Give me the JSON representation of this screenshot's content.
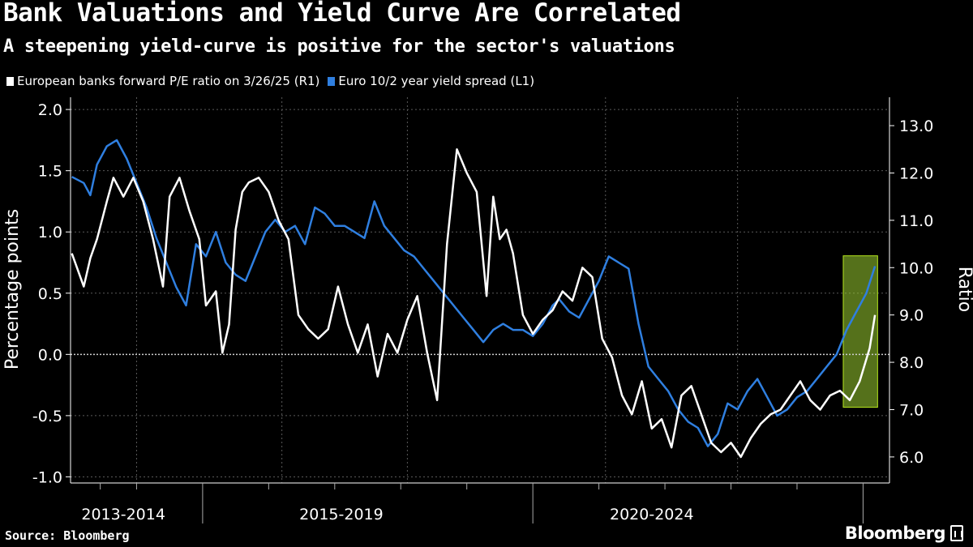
{
  "header": {
    "title": "Bank Valuations and Yield Curve Are Correlated",
    "subtitle": "A steepening yield-curve is positive for the sector's valuations"
  },
  "legend": {
    "items": [
      {
        "label": "European banks forward P/E ratio on 3/26/25 (R1)",
        "color": "#ffffff"
      },
      {
        "label": "Euro 10/2 year yield spread (L1)",
        "color": "#2f7fe0"
      }
    ]
  },
  "footer": {
    "source": "Source: Bloomberg",
    "brand": "Bloomberg"
  },
  "chart_data": {
    "type": "line",
    "title": "Bank Valuations and Yield Curve Are Correlated",
    "x_range": [
      2012.9,
      2025.3
    ],
    "x_period_labels": [
      {
        "label": "2013-2014",
        "center": 2013.7
      },
      {
        "label": "2015-2019",
        "center": 2017.0
      },
      {
        "label": "2020-2024",
        "center": 2021.7
      }
    ],
    "x_period_boundaries": [
      2014.9,
      2019.9,
      2024.9
    ],
    "left_axis": {
      "label": "Percentage points",
      "range": [
        -1.05,
        2.1
      ],
      "ticks": [
        -1.0,
        -0.5,
        0.0,
        0.5,
        1.0,
        1.5,
        2.0
      ],
      "tick_labels": [
        "-1.0",
        "-0.5",
        "0.0",
        "0.5",
        "1.0",
        "1.5",
        "2.0"
      ]
    },
    "right_axis": {
      "label": "Ratio",
      "range": [
        5.45,
        13.6
      ],
      "ticks": [
        6,
        7,
        8,
        9,
        10,
        11,
        12,
        13
      ],
      "tick_labels": [
        "6.0",
        "7.0",
        "8.0",
        "9.0",
        "10.0",
        "11.0",
        "12.0",
        "13.0"
      ]
    },
    "reference_line": {
      "axis": "left",
      "value": 0.0
    },
    "highlight_box": {
      "x": [
        2024.6,
        2025.12
      ],
      "y_right": [
        7.05,
        10.25
      ]
    },
    "series": [
      {
        "name": "Euro 10/2 year yield spread (L1)",
        "axis": "left",
        "color": "#2f7fe0",
        "x": [
          2012.92,
          2013.1,
          2013.2,
          2013.3,
          2013.45,
          2013.6,
          2013.75,
          2013.9,
          2014.05,
          2014.2,
          2014.35,
          2014.5,
          2014.65,
          2014.8,
          2014.95,
          2015.1,
          2015.25,
          2015.4,
          2015.55,
          2015.7,
          2015.85,
          2016.0,
          2016.15,
          2016.3,
          2016.45,
          2016.6,
          2016.75,
          2016.9,
          2017.05,
          2017.2,
          2017.35,
          2017.5,
          2017.65,
          2017.8,
          2017.95,
          2018.1,
          2018.25,
          2018.4,
          2018.55,
          2018.7,
          2018.85,
          2019.0,
          2019.15,
          2019.3,
          2019.45,
          2019.6,
          2019.75,
          2019.9,
          2020.05,
          2020.2,
          2020.3,
          2020.45,
          2020.6,
          2020.75,
          2020.9,
          2021.05,
          2021.2,
          2021.35,
          2021.5,
          2021.65,
          2021.8,
          2021.95,
          2022.1,
          2022.25,
          2022.4,
          2022.55,
          2022.7,
          2022.85,
          2023.0,
          2023.15,
          2023.3,
          2023.45,
          2023.6,
          2023.75,
          2023.9,
          2024.05,
          2024.2,
          2024.35,
          2024.5,
          2024.65,
          2024.8,
          2024.95,
          2025.08
        ],
        "values": [
          1.45,
          1.4,
          1.3,
          1.55,
          1.7,
          1.75,
          1.6,
          1.4,
          1.2,
          0.95,
          0.75,
          0.55,
          0.4,
          0.9,
          0.8,
          1.0,
          0.75,
          0.65,
          0.6,
          0.8,
          1.0,
          1.1,
          1.0,
          1.05,
          0.9,
          1.2,
          1.15,
          1.05,
          1.05,
          1.0,
          0.95,
          1.25,
          1.05,
          0.95,
          0.85,
          0.8,
          0.7,
          0.6,
          0.5,
          0.4,
          0.3,
          0.2,
          0.1,
          0.2,
          0.25,
          0.2,
          0.2,
          0.15,
          0.25,
          0.4,
          0.45,
          0.35,
          0.3,
          0.45,
          0.6,
          0.8,
          0.75,
          0.7,
          0.25,
          -0.1,
          -0.2,
          -0.3,
          -0.45,
          -0.55,
          -0.6,
          -0.75,
          -0.65,
          -0.4,
          -0.45,
          -0.3,
          -0.2,
          -0.35,
          -0.5,
          -0.45,
          -0.35,
          -0.3,
          -0.2,
          -0.1,
          0.0,
          0.2,
          0.35,
          0.5,
          0.72
        ]
      },
      {
        "name": "European banks forward P/E ratio on 3/26/25 (R1)",
        "axis": "right",
        "color": "#ffffff",
        "x": [
          2012.92,
          2013.1,
          2013.2,
          2013.3,
          2013.45,
          2013.55,
          2013.7,
          2013.85,
          2014.0,
          2014.15,
          2014.3,
          2014.4,
          2014.55,
          2014.7,
          2014.85,
          2014.95,
          2015.1,
          2015.2,
          2015.3,
          2015.4,
          2015.5,
          2015.6,
          2015.75,
          2015.9,
          2016.05,
          2016.2,
          2016.35,
          2016.5,
          2016.65,
          2016.8,
          2016.95,
          2017.1,
          2017.25,
          2017.4,
          2017.55,
          2017.7,
          2017.85,
          2018.0,
          2018.15,
          2018.3,
          2018.45,
          2018.6,
          2018.75,
          2018.9,
          2019.05,
          2019.2,
          2019.3,
          2019.4,
          2019.5,
          2019.6,
          2019.75,
          2019.9,
          2020.05,
          2020.2,
          2020.35,
          2020.5,
          2020.65,
          2020.8,
          2020.95,
          2021.1,
          2021.25,
          2021.4,
          2021.55,
          2021.7,
          2021.85,
          2022.0,
          2022.15,
          2022.3,
          2022.45,
          2022.6,
          2022.75,
          2022.9,
          2023.05,
          2023.2,
          2023.35,
          2023.5,
          2023.65,
          2023.8,
          2023.95,
          2024.1,
          2024.25,
          2024.4,
          2024.55,
          2024.7,
          2024.85,
          2025.0,
          2025.08
        ],
        "values": [
          10.3,
          9.6,
          10.2,
          10.6,
          11.4,
          11.9,
          11.5,
          11.9,
          11.4,
          10.6,
          9.6,
          11.5,
          11.9,
          11.2,
          10.6,
          9.2,
          9.5,
          8.2,
          8.8,
          10.8,
          11.6,
          11.8,
          11.9,
          11.6,
          11.0,
          10.6,
          9.0,
          8.7,
          8.5,
          8.7,
          9.6,
          8.8,
          8.2,
          8.8,
          7.7,
          8.6,
          8.2,
          8.9,
          9.4,
          8.2,
          7.2,
          10.5,
          12.5,
          12.0,
          11.6,
          9.4,
          11.5,
          10.6,
          10.8,
          10.3,
          9.0,
          8.6,
          8.9,
          9.1,
          9.5,
          9.3,
          10.0,
          9.8,
          8.5,
          8.1,
          7.3,
          6.9,
          7.6,
          6.6,
          6.8,
          6.2,
          7.3,
          7.5,
          6.9,
          6.3,
          6.1,
          6.3,
          6.0,
          6.4,
          6.7,
          6.9,
          7.0,
          7.3,
          7.6,
          7.2,
          7.0,
          7.3,
          7.4,
          7.2,
          7.6,
          8.3,
          9.0
        ]
      }
    ]
  }
}
